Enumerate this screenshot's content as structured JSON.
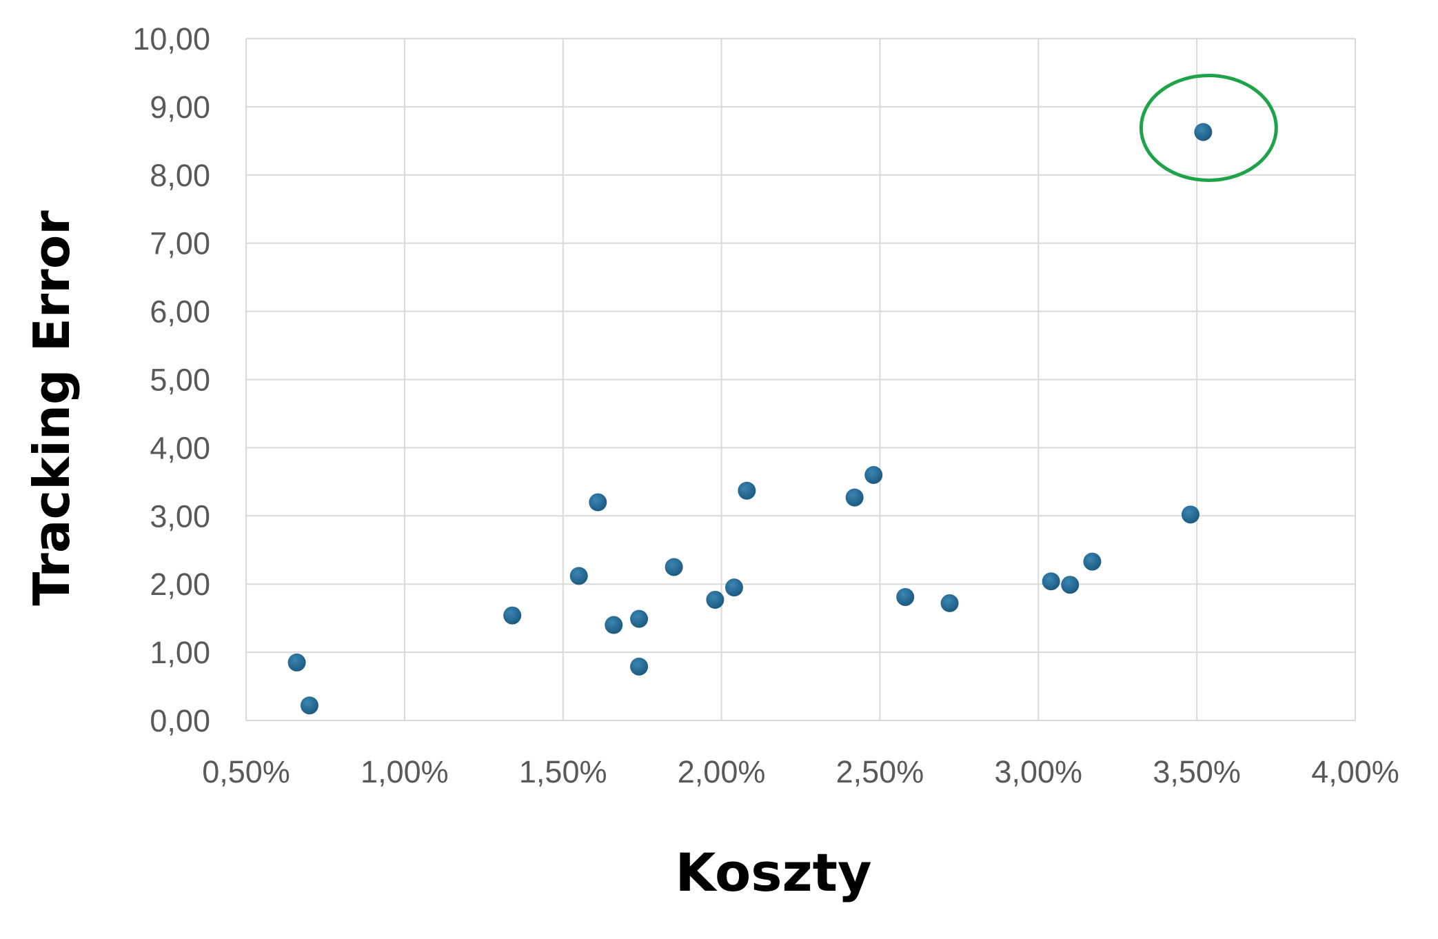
{
  "chart_data": {
    "type": "scatter",
    "title": "",
    "xlabel": "Koszty",
    "ylabel": "Tracking Error",
    "xlim": [
      0.005,
      0.04
    ],
    "ylim": [
      0,
      10
    ],
    "x_ticks": [
      0.005,
      0.01,
      0.015,
      0.02,
      0.025,
      0.03,
      0.035,
      0.04
    ],
    "x_tick_labels": [
      "0,50%",
      "1,00%",
      "1,50%",
      "2,00%",
      "2,50%",
      "3,00%",
      "3,50%",
      "4,00%"
    ],
    "y_ticks": [
      0,
      1,
      2,
      3,
      4,
      5,
      6,
      7,
      8,
      9,
      10
    ],
    "y_tick_labels": [
      "0,00",
      "1,00",
      "2,00",
      "3,00",
      "4,00",
      "5,00",
      "6,00",
      "7,00",
      "8,00",
      "9,00",
      "10,00"
    ],
    "grid": true,
    "legend": "none",
    "series": [
      {
        "points": [
          {
            "x": 0.0066,
            "y": 0.85
          },
          {
            "x": 0.007,
            "y": 0.22
          },
          {
            "x": 0.0134,
            "y": 1.54
          },
          {
            "x": 0.0155,
            "y": 2.12
          },
          {
            "x": 0.0161,
            "y": 3.2
          },
          {
            "x": 0.0166,
            "y": 1.4
          },
          {
            "x": 0.0174,
            "y": 1.49
          },
          {
            "x": 0.0174,
            "y": 0.79
          },
          {
            "x": 0.0185,
            "y": 2.25
          },
          {
            "x": 0.0198,
            "y": 1.77
          },
          {
            "x": 0.0204,
            "y": 1.95
          },
          {
            "x": 0.0208,
            "y": 3.37
          },
          {
            "x": 0.0242,
            "y": 3.27
          },
          {
            "x": 0.0248,
            "y": 3.6
          },
          {
            "x": 0.0258,
            "y": 1.81
          },
          {
            "x": 0.0272,
            "y": 1.72
          },
          {
            "x": 0.0304,
            "y": 2.04
          },
          {
            "x": 0.031,
            "y": 1.99
          },
          {
            "x": 0.0317,
            "y": 2.33
          },
          {
            "x": 0.0348,
            "y": 3.02
          },
          {
            "x": 0.0352,
            "y": 8.63
          }
        ]
      }
    ],
    "highlight": {
      "x": 0.0352,
      "y": 8.63,
      "shape": "ellipse",
      "color": "#1fa34a"
    },
    "colors": {
      "points": "#1c5a80",
      "grid": "#d9d9d9",
      "tick_text": "#595959",
      "highlight": "#1fa34a"
    }
  }
}
